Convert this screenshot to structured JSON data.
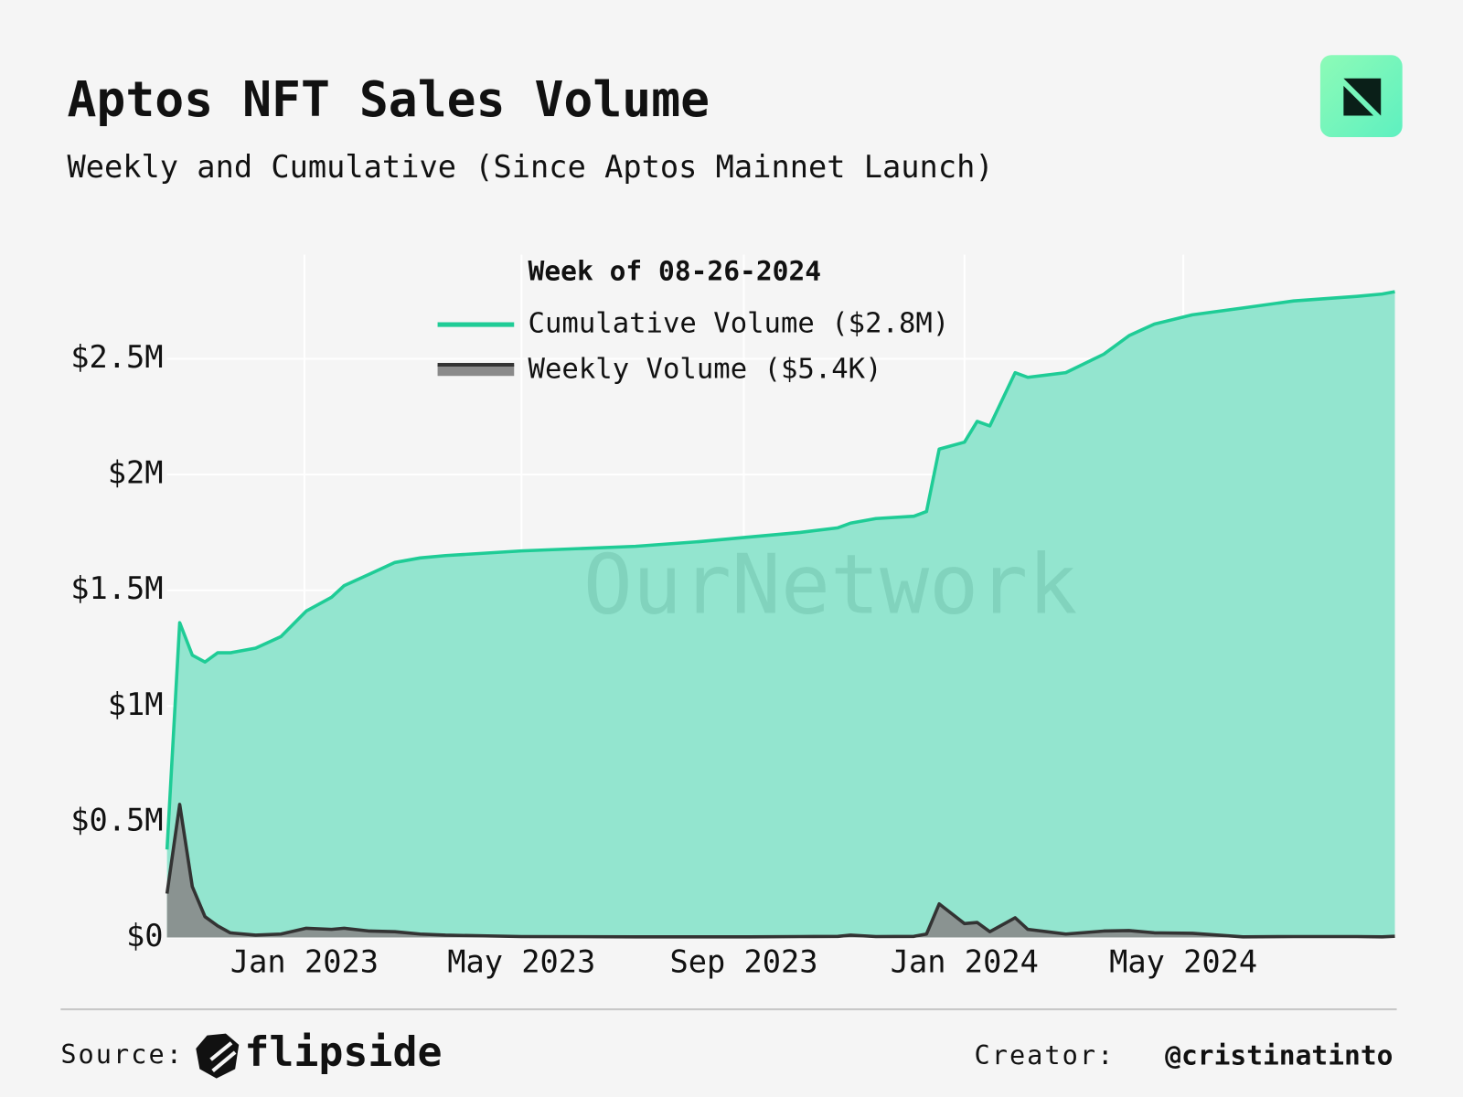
{
  "chart_data": {
    "type": "area",
    "title": "Aptos NFT Sales Volume",
    "subtitle": "Weekly and Cumulative (Since Aptos Mainnet Launch)",
    "legend_title": "Week of 08-26-2024",
    "legend": "top-center",
    "watermark": "OurNetwork",
    "grid": true,
    "x": [
      "2022-10-17",
      "2022-10-24",
      "2022-10-31",
      "2022-11-07",
      "2022-11-14",
      "2022-11-21",
      "2022-12-05",
      "2022-12-19",
      "2023-01-02",
      "2023-01-16",
      "2023-01-23",
      "2023-02-06",
      "2023-02-20",
      "2023-03-06",
      "2023-03-20",
      "2023-05-01",
      "2023-07-03",
      "2023-08-07",
      "2023-09-04",
      "2023-10-02",
      "2023-10-23",
      "2023-10-30",
      "2023-11-13",
      "2023-12-04",
      "2023-12-11",
      "2023-12-18",
      "2024-01-01",
      "2024-01-08",
      "2024-01-15",
      "2024-01-29",
      "2024-02-05",
      "2024-02-26",
      "2024-03-18",
      "2024-04-01",
      "2024-04-15",
      "2024-05-06",
      "2024-06-03",
      "2024-07-01",
      "2024-08-05",
      "2024-08-19",
      "2024-08-26"
    ],
    "series": [
      {
        "name": "Cumulative Volume ($2.8M)",
        "color": "#1fcc96",
        "fill": "#93e5cf",
        "values": [
          380000,
          1360000,
          1220000,
          1190000,
          1230000,
          1230000,
          1250000,
          1300000,
          1410000,
          1470000,
          1520000,
          1570000,
          1620000,
          1640000,
          1650000,
          1670000,
          1690000,
          1710000,
          1730000,
          1750000,
          1770000,
          1790000,
          1810000,
          1820000,
          1840000,
          2110000,
          2140000,
          2230000,
          2210000,
          2440000,
          2420000,
          2440000,
          2520000,
          2600000,
          2650000,
          2690000,
          2720000,
          2750000,
          2770000,
          2780000,
          2790000
        ]
      },
      {
        "name": "Weekly Volume ($5.4K)",
        "color": "#333333",
        "fill": "#8a8a8a",
        "values": [
          190000,
          575000,
          220000,
          90000,
          50000,
          20000,
          10000,
          15000,
          40000,
          35000,
          40000,
          28000,
          25000,
          15000,
          10000,
          4000,
          3000,
          3000,
          3000,
          4000,
          5000,
          10000,
          4000,
          5000,
          15000,
          145000,
          60000,
          65000,
          25000,
          85000,
          35000,
          15000,
          28000,
          30000,
          20000,
          18000,
          3000,
          4000,
          4000,
          3000,
          5400
        ]
      }
    ],
    "xlim": [
      "2022-10-17",
      "2024-08-26"
    ],
    "xticks": [
      {
        "value": "2023-01",
        "label": "Jan 2023"
      },
      {
        "value": "2023-05",
        "label": "May 2023"
      },
      {
        "value": "2023-09",
        "label": "Sep 2023"
      },
      {
        "value": "2024-01",
        "label": "Jan 2024"
      },
      {
        "value": "2024-05",
        "label": "May 2024"
      }
    ],
    "ylim": [
      0,
      2950000
    ],
    "yticks": [
      {
        "value": 0,
        "label": "$0"
      },
      {
        "value": 500000,
        "label": "$0.5M"
      },
      {
        "value": 1000000,
        "label": "$1M"
      },
      {
        "value": 1500000,
        "label": "$1.5M"
      },
      {
        "value": 2000000,
        "label": "$2M"
      },
      {
        "value": 2500000,
        "label": "$2.5M"
      }
    ]
  },
  "footer": {
    "source_label": "Source:",
    "source": "flipside",
    "creator_label": "Creator:",
    "creator": "@cristinatinto"
  }
}
